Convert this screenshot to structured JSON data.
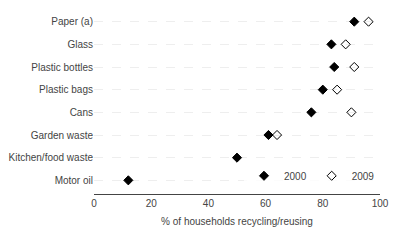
{
  "chart_data": {
    "type": "dot",
    "categories": [
      "Paper (a)",
      "Glass",
      "Plastic bottles",
      "Plastic bags",
      "Cans",
      "Garden waste",
      "Kitchen/food waste",
      "Motor oil"
    ],
    "series": [
      {
        "name": "2000",
        "color": "#000000",
        "marker": "diamond",
        "values": [
          91,
          83,
          84,
          80,
          76,
          61,
          50,
          12
        ]
      },
      {
        "name": "2009",
        "color": "#000000",
        "marker": "diamond-open",
        "values": [
          96,
          88,
          91,
          85,
          90,
          64,
          null,
          null
        ]
      }
    ],
    "xlabel": "% of households recycling/reusing",
    "xlim": [
      0,
      100
    ],
    "xticks": [
      0,
      20,
      40,
      60,
      80,
      100
    ],
    "grid": "y",
    "legend": "lower right"
  }
}
